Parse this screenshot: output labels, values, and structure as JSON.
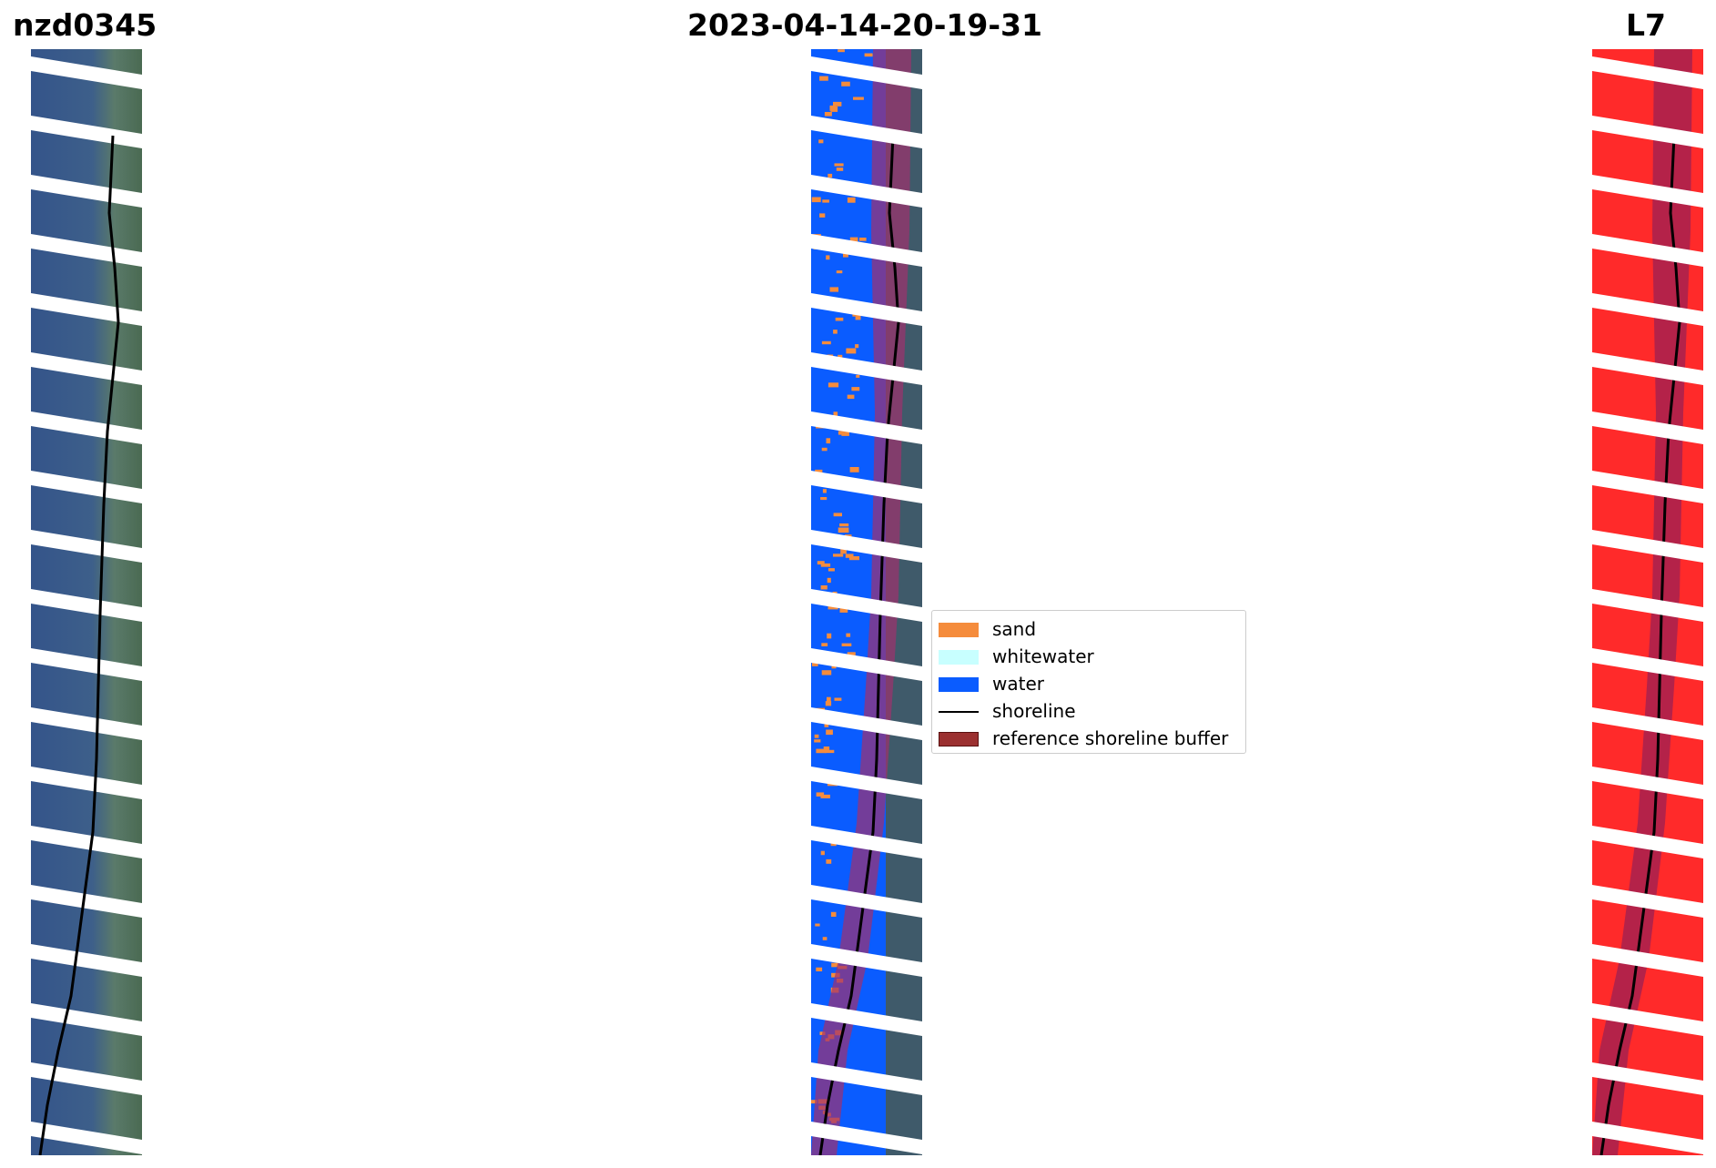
{
  "figure": {
    "title_left": "nzd0345",
    "title_center": "2023-04-14-20-19-31",
    "title_right": "L7"
  },
  "panels": {
    "rgb": {
      "colors": {
        "water": "#3a5a8c",
        "land": "#4f6f55",
        "stripe": "#ffffff"
      }
    },
    "classification": {
      "colors": {
        "water": "#0a5cff",
        "sand": "#f58c3c",
        "buffer": "#a0306e"
      }
    },
    "mndwi": {
      "colors": {
        "index": "#ff2a2a",
        "buffer": "#8c1e5a"
      }
    }
  },
  "legend": {
    "items": [
      {
        "label": "sand",
        "color": "#f58c3c",
        "kind": "patch"
      },
      {
        "label": "whitewater",
        "color": "#c8ffff",
        "kind": "patch"
      },
      {
        "label": "water",
        "color": "#0a5cff",
        "kind": "patch"
      },
      {
        "label": "shoreline",
        "color": "#000000",
        "kind": "line"
      },
      {
        "label": "reference shoreline buffer",
        "color": "#9b3030",
        "kind": "patch"
      }
    ]
  }
}
